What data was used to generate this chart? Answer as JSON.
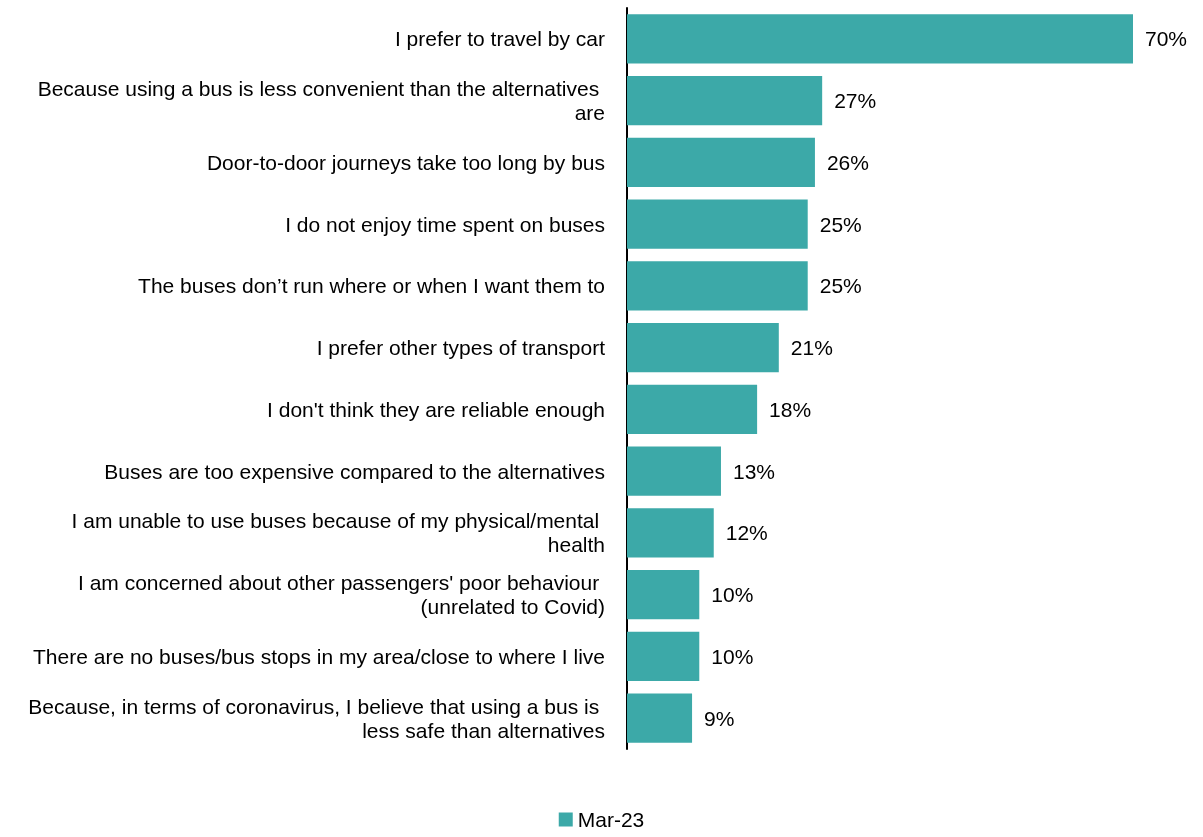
{
  "chart_data": {
    "type": "bar",
    "orientation": "horizontal",
    "categories": [
      "I prefer to travel by car",
      "Because using a bus is less convenient than the alternatives are",
      "Door-to-door journeys take too long by bus",
      "I do not enjoy time spent on buses",
      "The buses don’t run where or when I want them to",
      "I prefer other types of transport",
      "I don't think they are reliable enough",
      "Buses are too expensive compared to the alternatives",
      "I am unable to use buses because of my physical/mental health",
      "I am concerned about other passengers' poor behaviour (unrelated to Covid)",
      "There are no buses/bus stops in my area/close to where I live",
      "Because, in terms of coronavirus, I believe that using a bus is less safe than alternatives"
    ],
    "series": [
      {
        "name": "Mar-23",
        "color": "#3ca9a8",
        "values": [
          70,
          27,
          26,
          25,
          25,
          21,
          18,
          13,
          12,
          10,
          10,
          9
        ],
        "value_labels": [
          "70%",
          "27%",
          "26%",
          "25%",
          "25%",
          "21%",
          "18%",
          "13%",
          "12%",
          "10%",
          "10%",
          "9%"
        ]
      }
    ],
    "legend": "bottom",
    "grid": false
  }
}
